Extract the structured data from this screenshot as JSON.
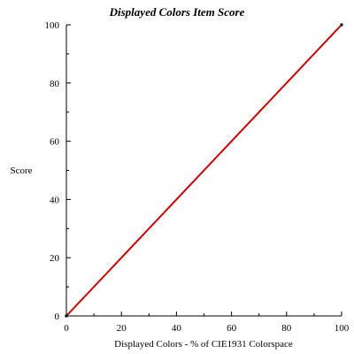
{
  "chart_data": {
    "type": "line",
    "title": "Displayed Colors Item Score",
    "xlabel": "Displayed Colors - % of CIE1931 Colorspace",
    "ylabel": "Score",
    "xlim": [
      0,
      100
    ],
    "ylim": [
      0,
      100
    ],
    "x_ticks": [
      "0",
      "20",
      "40",
      "60",
      "80",
      "100"
    ],
    "y_ticks": [
      "0",
      "20",
      "40",
      "60",
      "80",
      "100"
    ],
    "grid": false,
    "series": [
      {
        "color": "#cc0000",
        "x": [
          0,
          100
        ],
        "y": [
          0,
          100
        ]
      }
    ]
  }
}
